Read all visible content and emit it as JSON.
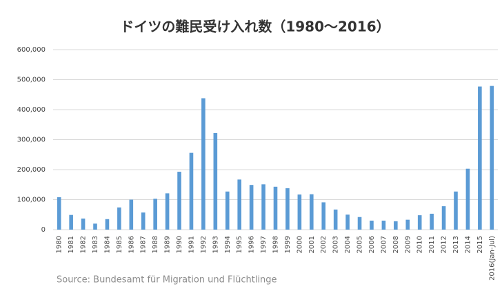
{
  "chart_data": {
    "type": "bar",
    "title": "ドイツの難民受け入れ数（1980～2016）",
    "source": "Source: Bundesamt für Migration und Flüchtlinge",
    "categories": [
      "1980",
      "1981",
      "1982",
      "1983",
      "1984",
      "1985",
      "1986",
      "1987",
      "1988",
      "1989",
      "1990",
      "1991",
      "1992",
      "1993",
      "1994",
      "1995",
      "1996",
      "1997",
      "1998",
      "1999",
      "2000",
      "2001",
      "2002",
      "2003",
      "2004",
      "2005",
      "2006",
      "2007",
      "2008",
      "2009",
      "2010",
      "2011",
      "2012",
      "2013",
      "2014",
      "2015",
      "2016(Jan-Jul)"
    ],
    "values": [
      108000,
      49000,
      37000,
      20000,
      35000,
      74000,
      100000,
      57000,
      103000,
      121000,
      193000,
      256000,
      438000,
      322000,
      127000,
      167000,
      149000,
      151000,
      143000,
      138000,
      117000,
      118000,
      91000,
      67000,
      50000,
      42000,
      30000,
      30000,
      28000,
      33000,
      48000,
      53000,
      78000,
      127000,
      203000,
      477000,
      479000
    ],
    "color": "#5b9bd5",
    "ylim": [
      0,
      600000
    ],
    "yticks": [
      0,
      {
        "value": 100000,
        "label": "100,000"
      },
      {
        "value": 200000,
        "label": "200,000"
      },
      {
        "value": 300000,
        "label": "300,000"
      },
      {
        "value": 400000,
        "label": "400,000"
      },
      {
        "value": 500000,
        "label": "500,000"
      },
      {
        "value": 600000,
        "label": "600,000"
      }
    ],
    "grid": true
  }
}
